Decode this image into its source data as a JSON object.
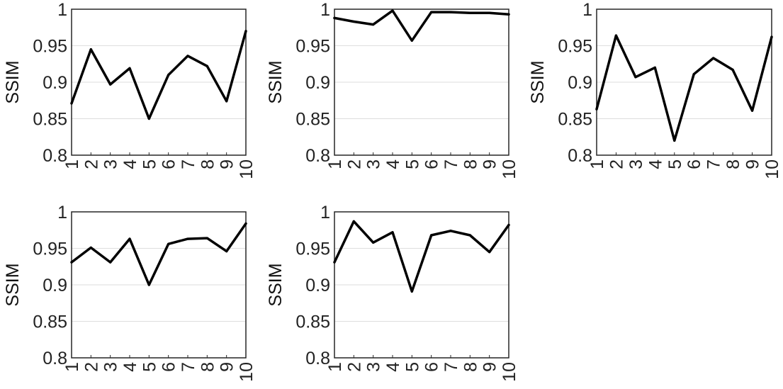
{
  "chart_data": [
    {
      "type": "line",
      "x": [
        1,
        2,
        3,
        4,
        5,
        6,
        7,
        8,
        9,
        10
      ],
      "xticks": [
        "1",
        "2",
        "3",
        "4",
        "5",
        "6",
        "7",
        "8",
        "9",
        "10"
      ],
      "yticks": [
        "0.8",
        "0.85",
        "0.9",
        "0.95",
        "1"
      ],
      "ylabel": "SSIM",
      "xlim": [
        1,
        10
      ],
      "ylim": [
        0.8,
        1
      ],
      "grid": "horizontal",
      "series": [
        {
          "values": [
            0.871,
            0.945,
            0.897,
            0.919,
            0.85,
            0.91,
            0.936,
            0.922,
            0.874,
            0.97
          ]
        }
      ]
    },
    {
      "type": "line",
      "x": [
        1,
        2,
        3,
        4,
        5,
        6,
        7,
        8,
        9,
        10
      ],
      "xticks": [
        "1",
        "2",
        "3",
        "4",
        "5",
        "6",
        "7",
        "8",
        "9",
        "10"
      ],
      "yticks": [
        "0.8",
        "0.85",
        "0.9",
        "0.95",
        "1"
      ],
      "ylabel": "SSIM",
      "xlim": [
        1,
        10
      ],
      "ylim": [
        0.8,
        1
      ],
      "grid": "horizontal",
      "series": [
        {
          "values": [
            0.988,
            0.983,
            0.979,
            0.998,
            0.957,
            0.996,
            0.996,
            0.995,
            0.995,
            0.993
          ]
        }
      ]
    },
    {
      "type": "line",
      "x": [
        1,
        2,
        3,
        4,
        5,
        6,
        7,
        8,
        9,
        10
      ],
      "xticks": [
        "1",
        "2",
        "3",
        "4",
        "5",
        "6",
        "7",
        "8",
        "9",
        "10"
      ],
      "yticks": [
        "0.8",
        "0.85",
        "0.9",
        "0.95",
        "1"
      ],
      "ylabel": "SSIM",
      "xlim": [
        1,
        10
      ],
      "ylim": [
        0.8,
        1
      ],
      "grid": "horizontal",
      "series": [
        {
          "values": [
            0.863,
            0.964,
            0.907,
            0.92,
            0.82,
            0.911,
            0.933,
            0.917,
            0.861,
            0.962
          ]
        }
      ]
    },
    {
      "type": "line",
      "x": [
        1,
        2,
        3,
        4,
        5,
        6,
        7,
        8,
        9,
        10
      ],
      "xticks": [
        "1",
        "2",
        "3",
        "4",
        "5",
        "6",
        "7",
        "8",
        "9",
        "10"
      ],
      "yticks": [
        "0.8",
        "0.85",
        "0.9",
        "0.95",
        "1"
      ],
      "ylabel": "SSIM",
      "xlim": [
        1,
        10
      ],
      "ylim": [
        0.8,
        1
      ],
      "grid": "horizontal",
      "series": [
        {
          "values": [
            0.931,
            0.951,
            0.931,
            0.963,
            0.9,
            0.956,
            0.963,
            0.964,
            0.946,
            0.984
          ]
        }
      ]
    },
    {
      "type": "line",
      "x": [
        1,
        2,
        3,
        4,
        5,
        6,
        7,
        8,
        9,
        10
      ],
      "xticks": [
        "1",
        "2",
        "3",
        "4",
        "5",
        "6",
        "7",
        "8",
        "9",
        "10"
      ],
      "yticks": [
        "0.8",
        "0.85",
        "0.9",
        "0.95",
        "1"
      ],
      "ylabel": "SSIM",
      "xlim": [
        1,
        10
      ],
      "ylim": [
        0.8,
        1
      ],
      "grid": "horizontal",
      "series": [
        {
          "values": [
            0.931,
            0.987,
            0.958,
            0.972,
            0.891,
            0.968,
            0.974,
            0.968,
            0.945,
            0.982
          ]
        }
      ]
    }
  ]
}
